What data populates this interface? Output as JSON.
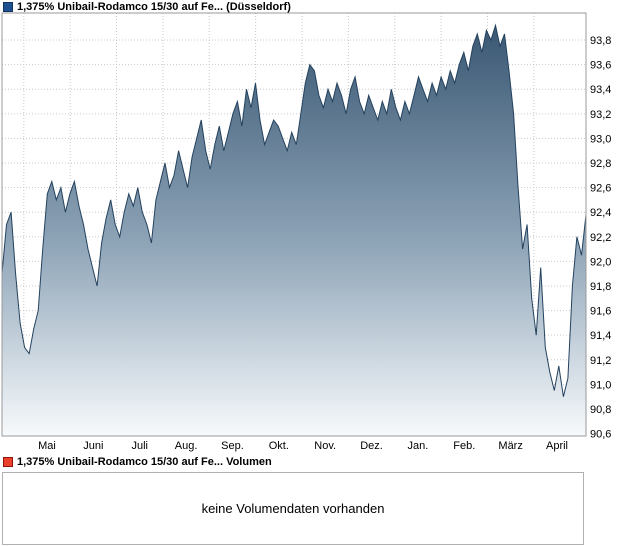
{
  "header": {
    "legend_label": "1,375% Unibail-Rodamco 15/30 auf Fe... (Düsseldorf)",
    "legend_color": "#1d4f91",
    "legend_border_color": "#123461"
  },
  "volume": {
    "legend_label": "1,375% Unibail-Rodamco 15/30 auf Fe... Volumen",
    "legend_color": "#e8402c",
    "legend_border_color": "#8f150c",
    "message": "keine Volumendaten vorhanden"
  },
  "chart_data": {
    "type": "area",
    "title": "1,375% Unibail-Rodamco 15/30 auf Fe... (Düsseldorf)",
    "xlabel": "",
    "ylabel": "",
    "x_labels": [
      "Mai",
      "Juni",
      "Juli",
      "Aug.",
      "Sep.",
      "Okt.",
      "Nov.",
      "Dez.",
      "Jan.",
      "Feb.",
      "März",
      "April"
    ],
    "y_tick_values": [
      90.6,
      90.8,
      91.0,
      91.2,
      91.4,
      91.6,
      91.8,
      92.0,
      92.2,
      92.4,
      92.6,
      92.8,
      93.0,
      93.2,
      93.4,
      93.6,
      93.8
    ],
    "y_tick_labels": [
      "90,6",
      "90,8",
      "91,0",
      "91,2",
      "91,4",
      "91,6",
      "91,8",
      "92,0",
      "92,2",
      "92,4",
      "92,6",
      "92,8",
      "93,0",
      "93,2",
      "93,4",
      "93,6",
      "93,8"
    ],
    "ylim": [
      90.58,
      94.02
    ],
    "grid": true,
    "legend_position": "top-left",
    "values": [
      91.9,
      92.3,
      92.4,
      91.9,
      91.5,
      91.3,
      91.25,
      91.45,
      91.6,
      92.1,
      92.55,
      92.65,
      92.5,
      92.6,
      92.4,
      92.55,
      92.65,
      92.45,
      92.3,
      92.1,
      91.95,
      91.8,
      92.15,
      92.35,
      92.5,
      92.3,
      92.2,
      92.4,
      92.55,
      92.45,
      92.6,
      92.4,
      92.3,
      92.15,
      92.5,
      92.65,
      92.8,
      92.6,
      92.7,
      92.9,
      92.75,
      92.6,
      92.85,
      93.0,
      93.15,
      92.9,
      92.75,
      92.95,
      93.1,
      92.9,
      93.05,
      93.2,
      93.3,
      93.1,
      93.4,
      93.25,
      93.45,
      93.15,
      92.95,
      93.05,
      93.15,
      93.1,
      93.0,
      92.9,
      93.05,
      92.95,
      93.2,
      93.45,
      93.6,
      93.55,
      93.35,
      93.25,
      93.4,
      93.3,
      93.45,
      93.35,
      93.2,
      93.4,
      93.5,
      93.3,
      93.2,
      93.35,
      93.25,
      93.15,
      93.3,
      93.2,
      93.4,
      93.25,
      93.15,
      93.3,
      93.2,
      93.35,
      93.5,
      93.4,
      93.3,
      93.45,
      93.35,
      93.5,
      93.4,
      93.55,
      93.45,
      93.6,
      93.7,
      93.55,
      93.75,
      93.85,
      93.7,
      93.88,
      93.8,
      93.92,
      93.75,
      93.85,
      93.55,
      93.2,
      92.6,
      92.1,
      92.3,
      91.7,
      91.4,
      91.95,
      91.3,
      91.1,
      90.95,
      91.15,
      90.9,
      91.05,
      91.8,
      92.2,
      92.05,
      92.38
    ],
    "line_color": "#24425e",
    "fill_top": "#35536f",
    "fill_mid": "#8fa5b8",
    "fill_bottom": "#f7fafc",
    "grid_color": "#c9c9c9",
    "frame_color": "#999999"
  }
}
